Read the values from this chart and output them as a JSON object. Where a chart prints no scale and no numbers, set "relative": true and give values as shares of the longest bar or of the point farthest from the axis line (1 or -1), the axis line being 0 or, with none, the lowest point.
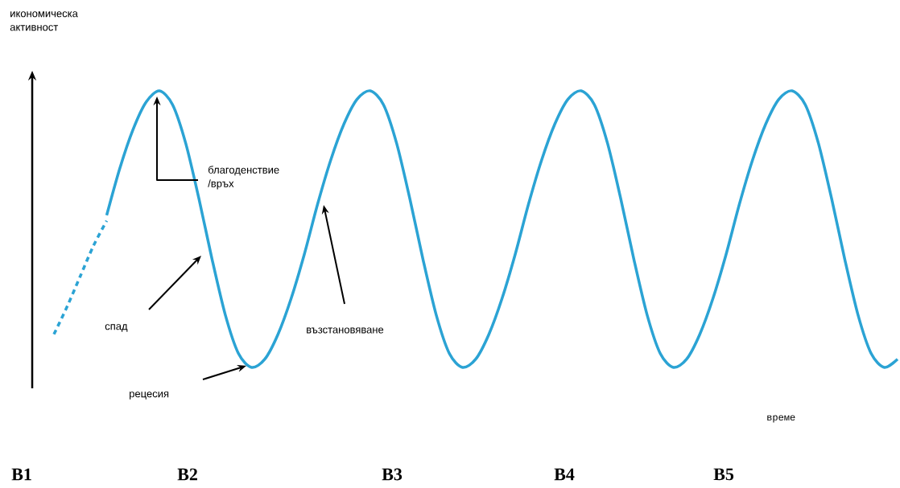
{
  "chart_data": {
    "type": "line",
    "relative": true,
    "marker": "none",
    "xlabel": "време",
    "categories": [
      null,
      null,
      null,
      null,
      null,
      null,
      null,
      null,
      null,
      null,
      null,
      null,
      null,
      null,
      null,
      null,
      null,
      null,
      null,
      null,
      null,
      null,
      null,
      null,
      null,
      null,
      null,
      null,
      null,
      null,
      null,
      null,
      null,
      null,
      null,
      null,
      null,
      null,
      null,
      null,
      null,
      null,
      null,
      null,
      null,
      null,
      null,
      null,
      null,
      null,
      null,
      null,
      null,
      null,
      null,
      null,
      null,
      null,
      null,
      null,
      null,
      null,
      null,
      null,
      null
    ],
    "series": [
      {
        "color": "#2ba3d4",
        "line_style": "dashed",
        "values": [
          0.12,
          0.22,
          0.33,
          0.44,
          0.53,
          null,
          null,
          null,
          null,
          null,
          null,
          null,
          null,
          null,
          null,
          null,
          null,
          null,
          null,
          null,
          null,
          null,
          null,
          null,
          null,
          null,
          null,
          null,
          null,
          null,
          null,
          null,
          null,
          null,
          null,
          null,
          null,
          null,
          null,
          null,
          null,
          null,
          null,
          null,
          null,
          null,
          null,
          null,
          null,
          null,
          null,
          null,
          null,
          null,
          null,
          null,
          null,
          null,
          null,
          null,
          null,
          null,
          null,
          null,
          null
        ]
      },
      {
        "color": "#2ba3d4",
        "line_style": "solid",
        "values": [
          null,
          null,
          null,
          null,
          0.55,
          0.72,
          0.86,
          0.96,
          1,
          0.95,
          0.81,
          0.61,
          0.39,
          0.19,
          0.05,
          0,
          0.03,
          0.12,
          0.25,
          0.41,
          0.59,
          0.75,
          0.88,
          0.97,
          1,
          0.95,
          0.81,
          0.61,
          0.39,
          0.19,
          0.05,
          0,
          0.03,
          0.12,
          0.25,
          0.41,
          0.59,
          0.75,
          0.88,
          0.97,
          1,
          0.95,
          0.81,
          0.61,
          0.39,
          0.19,
          0.05,
          0,
          0.03,
          0.12,
          0.25,
          0.41,
          0.59,
          0.75,
          0.88,
          0.97,
          1,
          0.95,
          0.81,
          0.61,
          0.39,
          0.19,
          0.05,
          0,
          0.03
        ]
      }
    ],
    "annotations": [
      "икономическа активност",
      "благоденствие /връх",
      "спад",
      "рецесия",
      "възстановяване",
      "В1",
      "В2",
      "В3",
      "В4",
      "В5"
    ]
  }
}
